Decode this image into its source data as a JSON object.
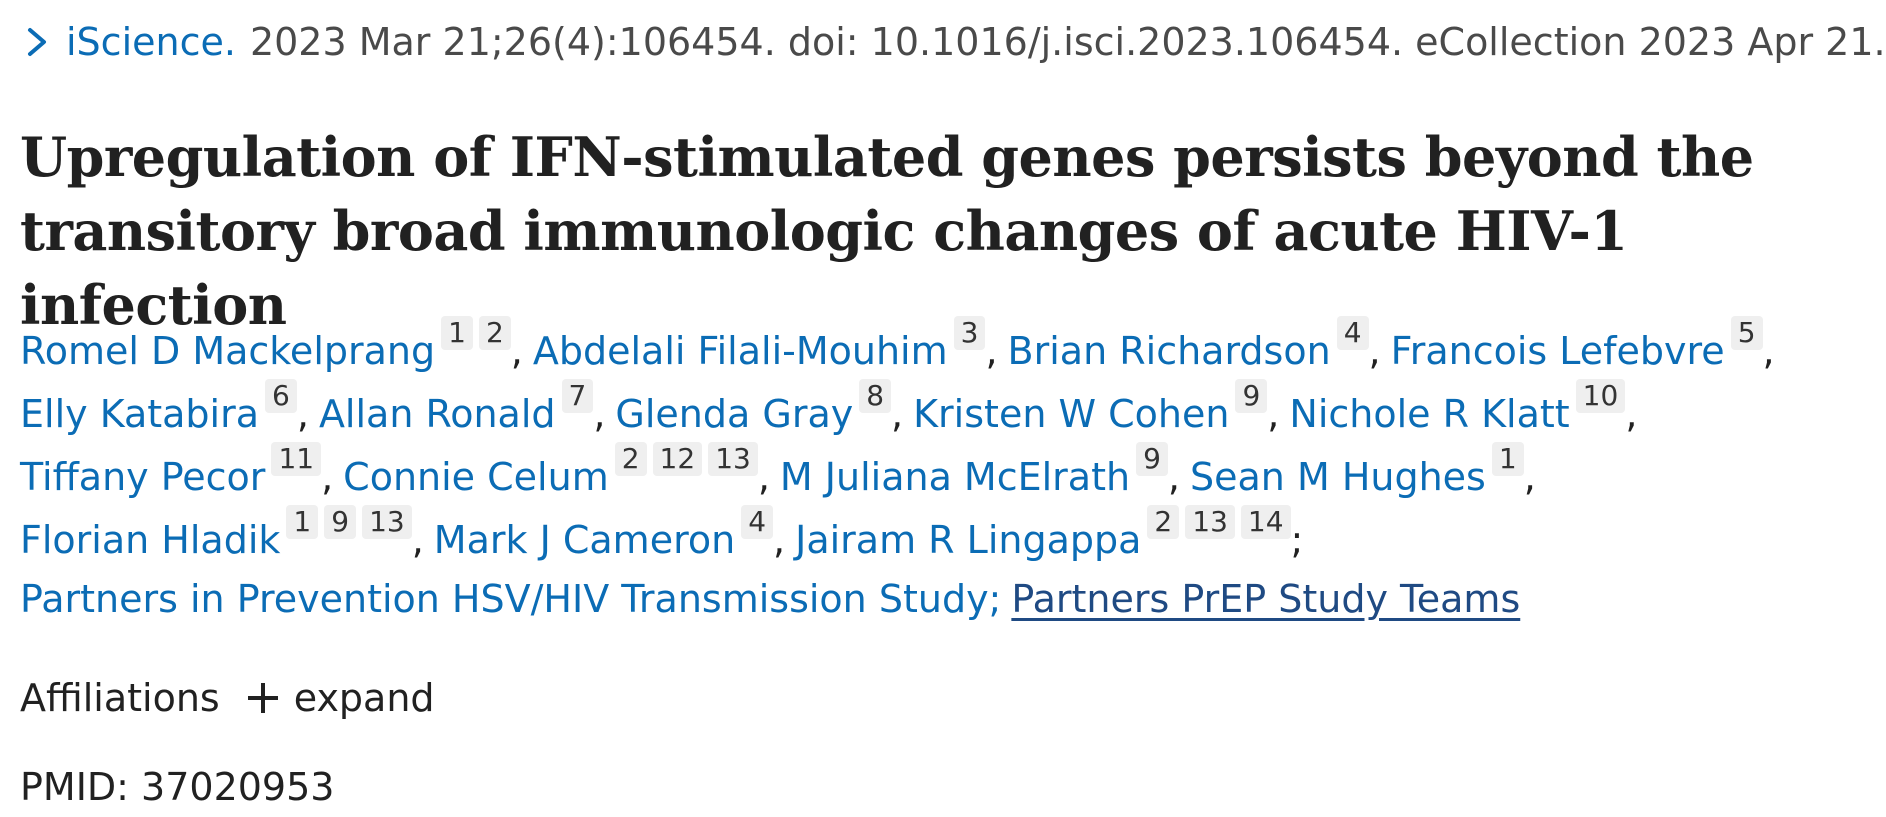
{
  "citation": {
    "journal": "iScience.",
    "details": "2023 Mar 21;26(4):106454. doi: 10.1016/j.isci.2023.106454. eCollection 2023 Apr 21."
  },
  "title_line1": "Upregulation of IFN-stimulated genes persists beyond the",
  "title_line2": "transitory broad immunologic changes of acute HIV-1 infection",
  "authors": [
    {
      "name": "Romel D Mackelprang",
      "affs": [
        "1",
        "2"
      ]
    },
    {
      "name": "Abdelali Filali-Mouhim",
      "affs": [
        "3"
      ]
    },
    {
      "name": "Brian Richardson",
      "affs": [
        "4"
      ]
    },
    {
      "name": "Francois Lefebvre",
      "affs": [
        "5"
      ]
    },
    {
      "name": "Elly Katabira",
      "affs": [
        "6"
      ]
    },
    {
      "name": "Allan Ronald",
      "affs": [
        "7"
      ]
    },
    {
      "name": "Glenda Gray",
      "affs": [
        "8"
      ]
    },
    {
      "name": "Kristen W Cohen",
      "affs": [
        "9"
      ]
    },
    {
      "name": "Nichole R Klatt",
      "affs": [
        "10"
      ]
    },
    {
      "name": "Tiffany Pecor",
      "affs": [
        "11"
      ]
    },
    {
      "name": "Connie Celum",
      "affs": [
        "2",
        "12",
        "13"
      ]
    },
    {
      "name": "M Juliana McElrath",
      "affs": [
        "9"
      ]
    },
    {
      "name": "Sean M Hughes",
      "affs": [
        "1"
      ]
    },
    {
      "name": "Florian Hladik",
      "affs": [
        "1",
        "9",
        "13"
      ]
    },
    {
      "name": "Mark J Cameron",
      "affs": [
        "4"
      ]
    },
    {
      "name": "Jairam R Lingappa",
      "affs": [
        "2",
        "13",
        "14"
      ]
    }
  ],
  "groups": {
    "group1": "Partners in Prevention HSV/HIV Transmission Study;",
    "group2": "Partners PrEP Study Teams"
  },
  "affiliations": {
    "label": "Affiliations",
    "expand_label": "expand"
  },
  "pmid": "PMID: 37020953",
  "colors": {
    "link": "#0b6cb5",
    "text": "#212121",
    "badge_bg": "#efefef"
  },
  "icons": [
    "chevron-right-icon",
    "plus-icon"
  ]
}
